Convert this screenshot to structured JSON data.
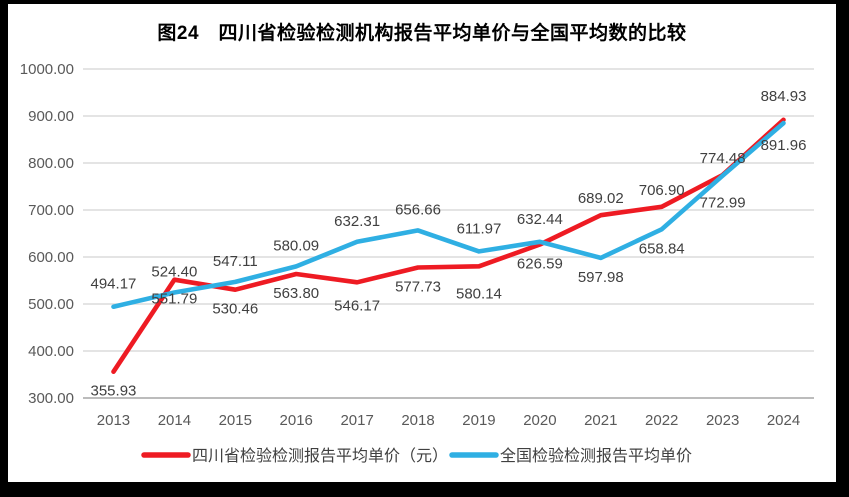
{
  "title": "图24　四川省检验检测机构报告平均单价与全国平均数的比较",
  "chart_data": {
    "type": "line",
    "categories": [
      "2013",
      "2014",
      "2015",
      "2016",
      "2017",
      "2018",
      "2019",
      "2020",
      "2021",
      "2022",
      "2023",
      "2024"
    ],
    "series": [
      {
        "key": "sichuan",
        "name": "四川省检验检测报告平均单价（元）",
        "color": "#ee1b23",
        "values": [
          355.93,
          551.79,
          530.46,
          563.8,
          546.17,
          577.73,
          580.14,
          626.59,
          689.02,
          706.9,
          774.48,
          891.96
        ],
        "labels": [
          "355.93",
          "551.79",
          "530.46",
          "563.80",
          "546.17",
          "577.73",
          "580.14",
          "626.59",
          "689.02",
          "706.90",
          "774.48",
          "891.96"
        ],
        "label_pos": [
          "below",
          "below",
          "below",
          "below",
          "below",
          "below",
          "below",
          "below",
          "above",
          "above",
          "above",
          "below"
        ],
        "label_dy": [
          0,
          0,
          0,
          0,
          4,
          0,
          8,
          0,
          0,
          0,
          0,
          6
        ]
      },
      {
        "key": "national",
        "name": "全国检验检测报告平均单价",
        "color": "#2fafe3",
        "values": [
          494.17,
          524.4,
          547.11,
          580.09,
          632.31,
          656.66,
          611.97,
          632.44,
          597.98,
          658.84,
          772.99,
          884.93
        ],
        "labels": [
          "494.17",
          "524.40",
          "547.11",
          "580.09",
          "632.31",
          "656.66",
          "611.97",
          "632.44",
          "597.98",
          "658.84",
          "772.99",
          "884.93"
        ],
        "label_pos": [
          "above",
          "above",
          "above",
          "above",
          "above",
          "above",
          "above",
          "above",
          "below",
          "below",
          "below",
          "above"
        ],
        "label_dy": [
          -6,
          -4,
          -4,
          -4,
          -4,
          -4,
          -6,
          -6,
          0,
          0,
          8,
          -10
        ]
      }
    ],
    "ylim": [
      300,
      1000
    ],
    "ytick_step": 100,
    "ytick_labels": [
      "1000.00",
      "900.00",
      "800.00",
      "700.00",
      "600.00",
      "500.00",
      "400.00",
      "300.00"
    ],
    "grid": true,
    "legend_position": "bottom"
  },
  "style": {
    "frame_color": "#000000",
    "background": "#ffffff",
    "grid_color": "#dcdcdc",
    "axis_line_color": "#a6a6a6",
    "tick_label_color": "#595959",
    "data_label_color": "#404040",
    "legend_text_color": "#404040",
    "title_color": "#000000"
  }
}
